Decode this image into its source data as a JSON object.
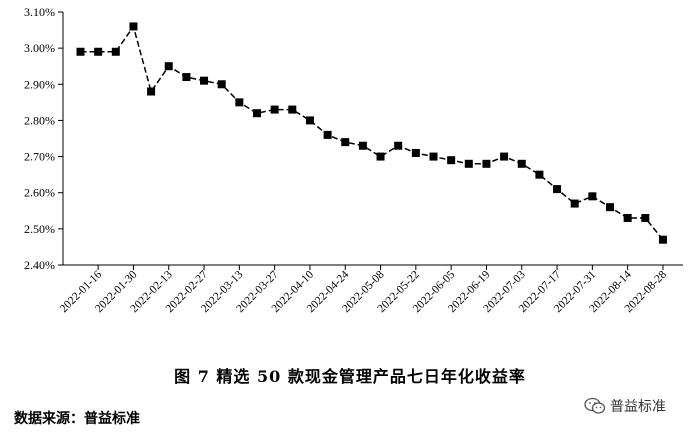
{
  "chart_data": {
    "type": "line",
    "x": [
      "2022-01-09",
      "2022-01-16",
      "2022-01-23",
      "2022-01-30",
      "2022-02-06",
      "2022-02-13",
      "2022-02-20",
      "2022-02-27",
      "2022-03-06",
      "2022-03-13",
      "2022-03-20",
      "2022-03-27",
      "2022-04-03",
      "2022-04-10",
      "2022-04-17",
      "2022-04-24",
      "2022-05-01",
      "2022-05-08",
      "2022-05-15",
      "2022-05-22",
      "2022-05-29",
      "2022-06-05",
      "2022-06-12",
      "2022-06-19",
      "2022-06-26",
      "2022-07-03",
      "2022-07-10",
      "2022-07-17",
      "2022-07-24",
      "2022-07-31",
      "2022-08-07",
      "2022-08-14",
      "2022-08-21",
      "2022-08-28"
    ],
    "series": [
      {
        "values": [
          2.99,
          2.99,
          2.99,
          3.06,
          2.88,
          2.95,
          2.92,
          2.91,
          2.9,
          2.85,
          2.82,
          2.83,
          2.83,
          2.8,
          2.76,
          2.74,
          2.73,
          2.7,
          2.73,
          2.71,
          2.7,
          2.69,
          2.68,
          2.68,
          2.7,
          2.68,
          2.65,
          2.61,
          2.57,
          2.59,
          2.56,
          2.53,
          2.53,
          2.47
        ]
      }
    ],
    "x_tick_labels": [
      "2022-01-16",
      "2022-01-30",
      "2022-02-13",
      "2022-02-27",
      "2022-03-13",
      "2022-03-27",
      "2022-04-10",
      "2022-04-24",
      "2022-05-08",
      "2022-05-22",
      "2022-06-05",
      "2022-06-19",
      "2022-07-03",
      "2022-07-17",
      "2022-07-31",
      "2022-08-14",
      "2022-08-28"
    ],
    "y_tick_labels": [
      "2.40%",
      "2.50%",
      "2.60%",
      "2.70%",
      "2.80%",
      "2.90%",
      "3.00%",
      "3.10%"
    ],
    "ylim": [
      2.4,
      3.1
    ],
    "title": "",
    "xlabel": "",
    "ylabel": "",
    "grid": false,
    "line_style": "dashed",
    "marker": "square",
    "color": "#000000"
  },
  "caption": "图 7   精选 50 款现金管理产品七日年化收益率",
  "source": "数据来源：普益标准",
  "watermark": {
    "text": "普益标准",
    "icon": "wechat-icon"
  }
}
